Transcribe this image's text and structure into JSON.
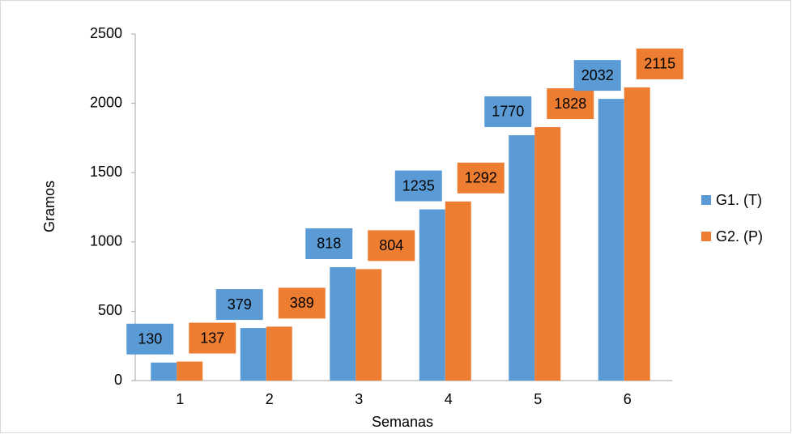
{
  "chart_data": {
    "type": "bar",
    "x_label": "Semanas",
    "y_label": "Gramos",
    "categories": [
      "1",
      "2",
      "3",
      "4",
      "5",
      "6"
    ],
    "series": [
      {
        "name": "G1. (T)",
        "color": "#5b9bd5",
        "values": [
          130,
          379,
          818,
          1235,
          1770,
          2032
        ]
      },
      {
        "name": "G2. (P)",
        "color": "#ed7d31",
        "values": [
          137,
          389,
          804,
          1292,
          1828,
          2115
        ]
      }
    ],
    "ylim": [
      0,
      2500
    ],
    "yticks": [
      0,
      500,
      1000,
      1500,
      2000,
      2500
    ],
    "legend": "right"
  }
}
